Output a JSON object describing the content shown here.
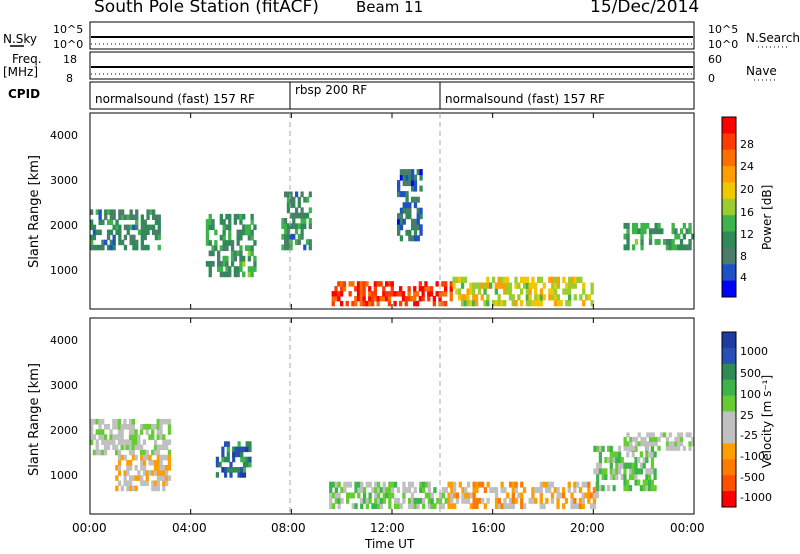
{
  "header": {
    "title": "South Pole Station (fitACF)",
    "beam": "Beam 11",
    "date": "15/Dec/2014"
  },
  "strip_labels": {
    "nsky": "N.Sky",
    "nsky_ticks": [
      "10^5",
      "10^0"
    ],
    "nsearch": "N.Search",
    "nsearch_ticks": [
      "10^5",
      "10^0"
    ],
    "freq": "Freq.",
    "freq_unit": "[MHz]",
    "freq_ticks": [
      "18",
      "8"
    ],
    "nave": "Nave",
    "nave_ticks": [
      "60",
      "0"
    ],
    "cpid": "CPID"
  },
  "cpid_segments": [
    {
      "label": "normalsound (fast) 157 RF",
      "start": "00:00",
      "end": "08:00"
    },
    {
      "label": "rbsp 200 RF",
      "start": "08:00",
      "end": "14:00"
    },
    {
      "label": "normalsound (fast) 157 RF",
      "start": "14:00",
      "end": "24:00"
    }
  ],
  "x_axis": {
    "label": "Time UT",
    "ticks": [
      "00:00",
      "04:00",
      "08:00",
      "12:00",
      "16:00",
      "20:00",
      "00:00"
    ]
  },
  "panels": {
    "power": {
      "ylabel": "Slant Range [km]",
      "yticks": [
        "4000",
        "3000",
        "2000",
        "1000"
      ],
      "cbar_label": "Power [dB]",
      "cbar_ticks": [
        "28",
        "24",
        "20",
        "16",
        "12",
        "8",
        "4"
      ],
      "cbar_colors": [
        "#ff0000",
        "#ff3b00",
        "#ff6e00",
        "#ff9e00",
        "#f0c800",
        "#9acd32",
        "#3cb44b",
        "#2e8b57",
        "#4a7d6a",
        "#1e50c8",
        "#0000ff"
      ]
    },
    "velocity": {
      "ylabel": "Slant Range [km]",
      "yticks": [
        "4000",
        "3000",
        "2000",
        "1000"
      ],
      "cbar_label": "Velocity [m s⁻¹]",
      "cbar_ticks": [
        "1000",
        "500",
        "100",
        "25",
        "-25",
        "-100",
        "-500",
        "-1000"
      ],
      "cbar_colors": [
        "#1e3ca0",
        "#2850b4",
        "#2e8b57",
        "#3cb44b",
        "#66cc33",
        "#c0c0c0",
        "#c0c0c0",
        "#ff9e00",
        "#ff7a00",
        "#ff5000",
        "#ff0000"
      ]
    }
  },
  "chart_data": [
    {
      "type": "heatmap",
      "title": "Power",
      "xlabel": "Time UT",
      "ylabel": "Slant Range [km]",
      "x_range_hours": [
        0,
        24
      ],
      "y_range_km": [
        180,
        4550
      ],
      "color_label": "Power [dB]",
      "color_range": [
        0,
        30
      ],
      "regions": [
        {
          "t0": 0.0,
          "t1": 2.8,
          "r0": 1500,
          "r1": 2400,
          "value": 8
        },
        {
          "t0": 4.6,
          "t1": 6.6,
          "r0": 900,
          "r1": 2300,
          "value": 10
        },
        {
          "t0": 7.6,
          "t1": 8.8,
          "r0": 1500,
          "r1": 2800,
          "value": 9
        },
        {
          "t0": 9.6,
          "t1": 14.4,
          "r0": 250,
          "r1": 800,
          "value": 26
        },
        {
          "t0": 14.4,
          "t1": 20.0,
          "r0": 250,
          "r1": 900,
          "value": 17
        },
        {
          "t0": 21.2,
          "t1": 24.0,
          "r0": 1500,
          "r1": 2100,
          "value": 10
        },
        {
          "t0": 12.2,
          "t1": 13.2,
          "r0": 1700,
          "r1": 3300,
          "value": 6
        }
      ]
    },
    {
      "type": "heatmap",
      "title": "Velocity",
      "xlabel": "Time UT",
      "ylabel": "Slant Range [km]",
      "x_range_hours": [
        0,
        24
      ],
      "y_range_km": [
        180,
        4550
      ],
      "color_label": "Velocity [m s⁻¹]",
      "color_range": [
        -1000,
        1000
      ],
      "regions": [
        {
          "t0": 0.0,
          "t1": 3.2,
          "r0": 1500,
          "r1": 2300,
          "value": 0
        },
        {
          "t0": 1.0,
          "t1": 3.2,
          "r0": 700,
          "r1": 1500,
          "value": -200
        },
        {
          "t0": 5.0,
          "t1": 6.4,
          "r0": 1000,
          "r1": 1800,
          "value": 600
        },
        {
          "t0": 9.5,
          "t1": 14.2,
          "r0": 300,
          "r1": 900,
          "value": 150
        },
        {
          "t0": 14.2,
          "t1": 20.2,
          "r0": 300,
          "r1": 900,
          "value": -300
        },
        {
          "t0": 20.0,
          "t1": 22.5,
          "r0": 700,
          "r1": 1700,
          "value": 200
        },
        {
          "t0": 21.2,
          "t1": 24.0,
          "r0": 1600,
          "r1": 2000,
          "value": 0
        }
      ]
    }
  ]
}
